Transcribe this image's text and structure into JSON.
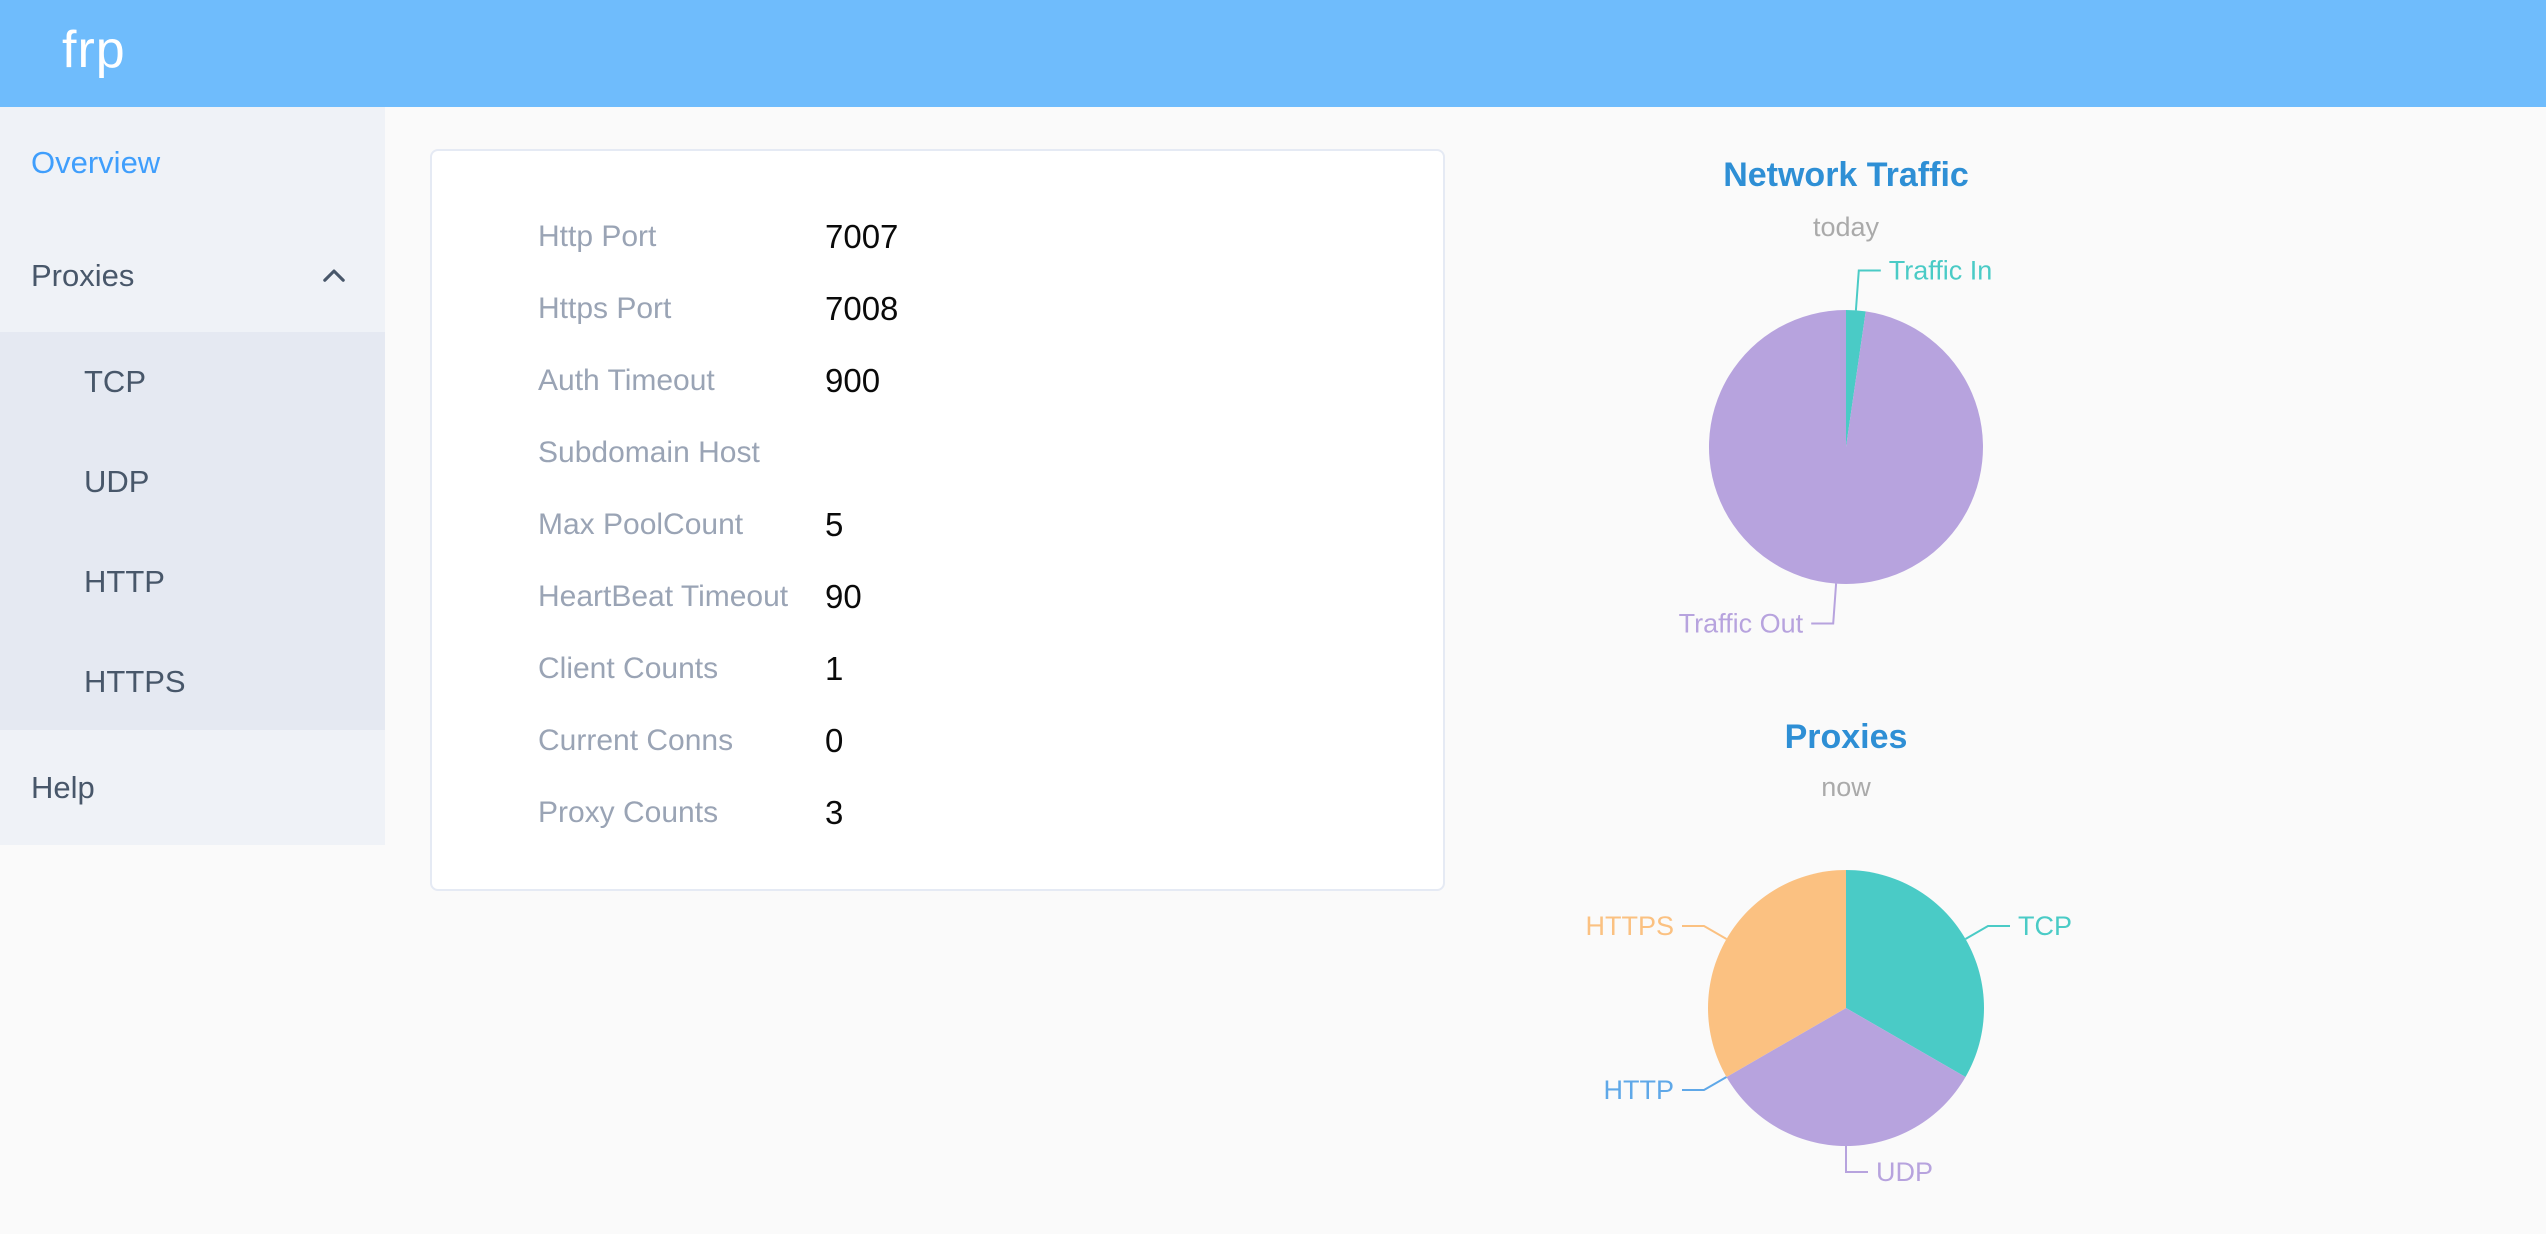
{
  "header": {
    "logo_text": "frp",
    "background_color": "#6FBCFC"
  },
  "sidebar": {
    "items": [
      {
        "label": "Overview",
        "active": true
      },
      {
        "label": "Proxies",
        "expanded": true,
        "children": [
          "TCP",
          "UDP",
          "HTTP",
          "HTTPS"
        ]
      },
      {
        "label": "Help"
      }
    ],
    "active_color": "#3F9EFC",
    "text_color": "#48576A"
  },
  "server_info": {
    "rows": [
      {
        "label": "Http Port",
        "value": "7007"
      },
      {
        "label": "Https Port",
        "value": "7008"
      },
      {
        "label": "Auth Timeout",
        "value": "900"
      },
      {
        "label": "Subdomain Host",
        "value": ""
      },
      {
        "label": "Max PoolCount",
        "value": "5"
      },
      {
        "label": "HeartBeat Timeout",
        "value": "90"
      },
      {
        "label": "Client Counts",
        "value": "1"
      },
      {
        "label": "Current Conns",
        "value": "0"
      },
      {
        "label": "Proxy Counts",
        "value": "3"
      }
    ]
  },
  "chart_data": [
    {
      "type": "pie",
      "title": "Network Traffic",
      "subtitle": "today",
      "label_position": "outside",
      "legend": "none",
      "slices": [
        {
          "label": "Traffic In",
          "percent": 2.3,
          "color": "#4ACBC6"
        },
        {
          "label": "Traffic Out",
          "percent": 97.7,
          "color": "#B7A3DE"
        }
      ]
    },
    {
      "type": "pie",
      "title": "Proxies",
      "subtitle": "now",
      "label_position": "outside",
      "legend": "none",
      "slices": [
        {
          "label": "TCP",
          "value": 1,
          "percent": 33.3,
          "color": "#4ACBC6"
        },
        {
          "label": "UDP",
          "value": 1,
          "percent": 33.3,
          "color": "#B7A3DE"
        },
        {
          "label": "HTTP",
          "value": 0,
          "percent": 0,
          "color": "#5FA8E8"
        },
        {
          "label": "HTTPS",
          "value": 1,
          "percent": 33.3,
          "color": "#FBC181"
        }
      ]
    }
  ],
  "colors": {
    "header_blue": "#6FBCFC",
    "chart_title_blue": "#2E8FD5",
    "subtitle_gray": "#AAAAAA",
    "teal": "#4ACBC6",
    "purple": "#B7A3DE",
    "blue": "#5FA8E8",
    "orange": "#FBC181",
    "page_background": "#FAFAFA"
  }
}
